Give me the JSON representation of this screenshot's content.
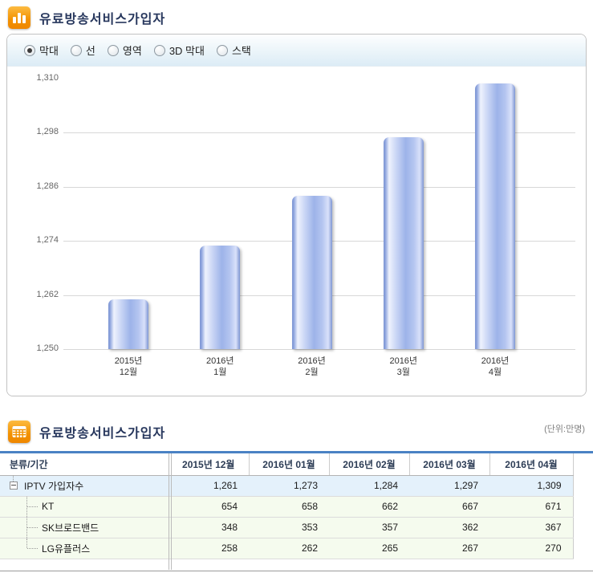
{
  "colors": {
    "accent_orange": "#f29100",
    "title_text": "#26365c",
    "bar_fill_mid": "#aabfec",
    "bar_fill_edge": "#7b93d2",
    "table_top_rule": "#4a82c4",
    "parent_row_bg": "#e4f1fb",
    "child_row_bg": "#f5fbee"
  },
  "chart_section": {
    "title": "유료방송서비스가입자",
    "chart_types": [
      {
        "id": "bar",
        "label": "막대",
        "selected": true
      },
      {
        "id": "line",
        "label": "선",
        "selected": false
      },
      {
        "id": "area",
        "label": "영역",
        "selected": false
      },
      {
        "id": "bar3d",
        "label": "3D 막대",
        "selected": false
      },
      {
        "id": "stack",
        "label": "스택",
        "selected": false
      }
    ]
  },
  "chart_data": {
    "type": "bar",
    "title": "유료방송서비스가입자",
    "categories": [
      [
        "2015년",
        "12월"
      ],
      [
        "2016년",
        "1월"
      ],
      [
        "2016년",
        "2월"
      ],
      [
        "2016년",
        "3월"
      ],
      [
        "2016년",
        "4월"
      ]
    ],
    "values": [
      1261,
      1273,
      1284,
      1297,
      1309
    ],
    "ylim": [
      1250,
      1310
    ],
    "ytick_step": 12,
    "ytick_labels": [
      "1,250",
      "1,262",
      "1,274",
      "1,286",
      "1,298",
      "1,310"
    ],
    "grid": "horizontal",
    "legend": "none",
    "unit": "만명"
  },
  "table_section": {
    "title": "유료방송서비스가입자",
    "unit_label": "(단위:만명)",
    "columns": [
      "분류/기간",
      "2015년 12월",
      "2016년 01월",
      "2016년 02월",
      "2016년 03월",
      "2016년 04월"
    ],
    "rows": [
      {
        "label": "IPTV 가입자수",
        "level": 0,
        "values": [
          "1,261",
          "1,273",
          "1,284",
          "1,297",
          "1,309"
        ]
      },
      {
        "label": "KT",
        "level": 1,
        "values": [
          "654",
          "658",
          "662",
          "667",
          "671"
        ]
      },
      {
        "label": "SK브로드밴드",
        "level": 1,
        "values": [
          "348",
          "353",
          "357",
          "362",
          "367"
        ]
      },
      {
        "label": "LG유플러스",
        "level": 1,
        "values": [
          "258",
          "262",
          "265",
          "267",
          "270"
        ]
      }
    ]
  }
}
